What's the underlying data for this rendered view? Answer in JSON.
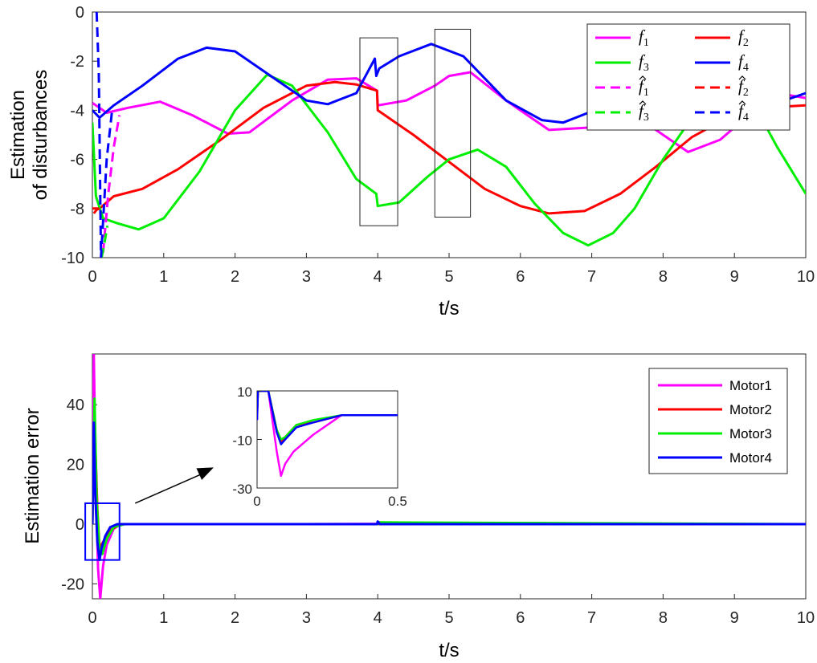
{
  "chart_data": [
    {
      "type": "line",
      "title": "",
      "xlabel": "t/s",
      "ylabel_lines": [
        "Estimation",
        "of disturbances"
      ],
      "xlim": [
        0,
        10
      ],
      "ylim": [
        -10,
        0
      ],
      "xticks": [
        "0",
        "1",
        "2",
        "3",
        "4",
        "5",
        "6",
        "7",
        "8",
        "9",
        "10"
      ],
      "yticks": [
        "0",
        "-2",
        "-4",
        "-6",
        "-8",
        "-10"
      ],
      "grid": false,
      "legend_position": "top-right",
      "legend_columns": 2,
      "series": [
        {
          "name": "f",
          "sub": "1",
          "hat": false,
          "color": "#ff00ff",
          "dash": false,
          "x": [
            0,
            0.05,
            0.2,
            0.5,
            0.95,
            1.4,
            1.9,
            2.2,
            2.8,
            3.3,
            3.7,
            3.99,
            4.0,
            4.4,
            4.8,
            5.0,
            5.3,
            5.8,
            6.4,
            7.0,
            7.5,
            8.0,
            8.35,
            8.8,
            9.2,
            9.6,
            10.0
          ],
          "y": [
            -3.7,
            -3.8,
            -4.1,
            -3.9,
            -3.65,
            -4.2,
            -4.95,
            -4.9,
            -3.6,
            -2.75,
            -2.7,
            -3.2,
            -3.8,
            -3.6,
            -3.0,
            -2.6,
            -2.45,
            -3.6,
            -4.8,
            -4.7,
            -4.0,
            -5.0,
            -5.7,
            -5.2,
            -4.2,
            -3.3,
            -3.5
          ]
        },
        {
          "name": "f",
          "sub": "2",
          "hat": false,
          "color": "#ff0000",
          "dash": false,
          "x": [
            0,
            0.1,
            0.3,
            0.7,
            1.2,
            1.8,
            2.4,
            3.0,
            3.4,
            3.7,
            3.99,
            4.0,
            4.5,
            5.0,
            5.5,
            6.0,
            6.4,
            6.9,
            7.4,
            7.9,
            8.4,
            8.9,
            9.4,
            10.0
          ],
          "y": [
            -8.0,
            -8.0,
            -7.5,
            -7.2,
            -6.4,
            -5.2,
            -3.9,
            -3.0,
            -2.85,
            -2.95,
            -3.2,
            -4.0,
            -5.0,
            -6.1,
            -7.2,
            -7.9,
            -8.2,
            -8.1,
            -7.4,
            -6.3,
            -5.1,
            -4.3,
            -3.9,
            -3.8
          ]
        },
        {
          "name": "f",
          "sub": "3",
          "hat": false,
          "color": "#00ee00",
          "dash": false,
          "x": [
            0,
            0.05,
            0.15,
            0.35,
            0.65,
            1.0,
            1.5,
            2.0,
            2.45,
            2.8,
            3.3,
            3.7,
            3.98,
            4.0,
            4.3,
            4.7,
            5.0,
            5.4,
            5.8,
            6.2,
            6.6,
            6.95,
            7.3,
            7.6,
            8.0,
            8.5,
            9.0,
            9.3,
            9.6,
            10.0
          ],
          "y": [
            -4.5,
            -7.5,
            -8.4,
            -8.6,
            -8.85,
            -8.4,
            -6.5,
            -4.0,
            -2.55,
            -3.0,
            -4.9,
            -6.8,
            -7.4,
            -7.9,
            -7.75,
            -6.7,
            -6.0,
            -5.6,
            -6.3,
            -7.8,
            -9.0,
            -9.5,
            -9.0,
            -8.0,
            -6.0,
            -3.9,
            -3.4,
            -3.9,
            -5.5,
            -7.4
          ]
        },
        {
          "name": "f",
          "sub": "4",
          "hat": false,
          "color": "#0000ff",
          "dash": false,
          "x": [
            0,
            0.1,
            0.3,
            0.7,
            1.2,
            1.6,
            2.0,
            2.5,
            3.0,
            3.3,
            3.7,
            3.96,
            3.98,
            4.02,
            4.3,
            4.75,
            5.2,
            5.8,
            6.3,
            6.6,
            6.95,
            7.3,
            7.7,
            8.2,
            8.7,
            9.2,
            9.7,
            10.0
          ],
          "y": [
            -4.0,
            -4.3,
            -3.8,
            -3.0,
            -1.9,
            -1.45,
            -1.6,
            -2.6,
            -3.6,
            -3.75,
            -3.3,
            -1.9,
            -2.6,
            -2.3,
            -1.8,
            -1.3,
            -1.8,
            -3.6,
            -4.4,
            -4.5,
            -4.1,
            -3.5,
            -3.2,
            -3.6,
            -4.0,
            -4.0,
            -3.6,
            -3.3
          ]
        },
        {
          "name": "f",
          "sub": "1",
          "hat": true,
          "color": "#ff00ff",
          "dash": true,
          "x": [
            0.15,
            0.22,
            0.3,
            0.38
          ],
          "y": [
            -9.8,
            -7.5,
            -5.5,
            -4.2
          ]
        },
        {
          "name": "f",
          "sub": "2",
          "hat": true,
          "color": "#ff0000",
          "dash": true,
          "x": [
            0.02,
            0.06,
            0.1
          ],
          "y": [
            -8.2,
            -8.05,
            -8.0
          ]
        },
        {
          "name": "f",
          "sub": "3",
          "hat": true,
          "color": "#00ee00",
          "dash": true,
          "x": [
            0.13,
            0.17,
            0.21
          ],
          "y": [
            -10.0,
            -9.4,
            -8.7
          ]
        },
        {
          "name": "f",
          "sub": "4",
          "hat": true,
          "color": "#0000ff",
          "dash": true,
          "x": [
            0.06,
            0.09,
            0.12,
            0.2,
            0.28
          ],
          "y": [
            0.0,
            -2.5,
            -10.0,
            -6.0,
            -3.9
          ]
        }
      ],
      "annotations": [
        {
          "type": "rect",
          "x0": 3.75,
          "x1": 4.28,
          "y0": -8.7,
          "y1": -1.05
        },
        {
          "type": "rect",
          "x0": 4.8,
          "x1": 5.3,
          "y0": -8.35,
          "y1": -0.7
        }
      ]
    },
    {
      "type": "line",
      "title": "",
      "xlabel": "t/s",
      "ylabel_lines": [
        "Estimation error"
      ],
      "xlim": [
        0,
        10
      ],
      "ylim": [
        -25,
        57
      ],
      "xticks": [
        "0",
        "1",
        "2",
        "3",
        "4",
        "5",
        "6",
        "7",
        "8",
        "9",
        "10"
      ],
      "yticks": [
        "40",
        "20",
        "0",
        "-20"
      ],
      "grid": false,
      "legend_position": "top-right",
      "legend_columns": 1,
      "series": [
        {
          "name": "Motor1",
          "color": "#ff00ff",
          "x": [
            0,
            0.02,
            0.05,
            0.08,
            0.11,
            0.15,
            0.2,
            0.3,
            0.4,
            1.0,
            3.0,
            5.0,
            7.0,
            10.0
          ],
          "y": [
            0,
            57,
            10,
            -15,
            -25,
            -14,
            -7,
            -1.5,
            0,
            0,
            0,
            0.2,
            0,
            0
          ]
        },
        {
          "name": "Motor2",
          "color": "#ff0000",
          "x": [
            0,
            0.03,
            0.07,
            0.1,
            0.15,
            0.25,
            0.4,
            1.0,
            10.0
          ],
          "y": [
            0,
            35,
            5,
            -8,
            -6,
            -2,
            0,
            0,
            0
          ]
        },
        {
          "name": "Motor3",
          "color": "#00ee00",
          "x": [
            0,
            0.03,
            0.06,
            0.1,
            0.14,
            0.2,
            0.3,
            0.45,
            1.0,
            4.0,
            4.02,
            10.0
          ],
          "y": [
            0,
            42,
            8,
            -9,
            -10,
            -5,
            -1,
            0,
            0,
            0,
            0.6,
            0
          ]
        },
        {
          "name": "Motor4",
          "color": "#0000ff",
          "x": [
            0,
            0.02,
            0.04,
            0.07,
            0.1,
            0.13,
            0.18,
            0.25,
            0.35,
            1.0,
            3.99,
            4.0,
            4.03,
            10.0
          ],
          "y": [
            0,
            34,
            10,
            -6,
            -12,
            -8,
            -4,
            -1,
            0,
            0,
            0,
            0.9,
            0,
            0
          ]
        }
      ],
      "annotations": [
        {
          "type": "rect",
          "x0": -0.1,
          "x1": 0.38,
          "y0": -12,
          "y1": 7
        },
        {
          "type": "arrow",
          "x0": 0.6,
          "y0": 7,
          "x1": 1.7,
          "y1": 19
        }
      ],
      "inset": {
        "xlim": [
          0,
          0.5
        ],
        "ylim": [
          -30,
          10
        ],
        "xticks": [
          "0",
          "0.5"
        ],
        "yticks": [
          "10",
          "-10",
          "-30"
        ],
        "series": [
          {
            "color": "#ff00ff",
            "x": [
              0,
              0.003,
              0.01,
              0.04,
              0.07,
              0.085,
              0.1,
              0.13,
              0.2,
              0.3,
              0.5
            ],
            "y": [
              -2,
              10,
              10,
              10,
              -15,
              -25,
              -20,
              -15,
              -8,
              0,
              0
            ]
          },
          {
            "color": "#ff0000",
            "x": [
              0,
              0.003,
              0.01,
              0.04,
              0.07,
              0.085,
              0.1,
              0.14,
              0.2,
              0.3,
              0.5
            ],
            "y": [
              0,
              10,
              10,
              10,
              -6,
              -11,
              -9,
              -4,
              -3,
              0,
              0
            ]
          },
          {
            "color": "#00ee00",
            "x": [
              0,
              0.003,
              0.01,
              0.04,
              0.07,
              0.085,
              0.1,
              0.14,
              0.2,
              0.3,
              0.5
            ],
            "y": [
              0,
              10,
              10,
              10,
              -6,
              -10,
              -9,
              -4,
              -2,
              0,
              0
            ]
          },
          {
            "color": "#0000ff",
            "x": [
              0,
              0.003,
              0.01,
              0.04,
              0.07,
              0.085,
              0.1,
              0.14,
              0.2,
              0.3,
              0.5
            ],
            "y": [
              -2,
              10,
              10,
              10,
              -7,
              -12,
              -10,
              -5,
              -3,
              0,
              0
            ]
          }
        ]
      }
    }
  ]
}
